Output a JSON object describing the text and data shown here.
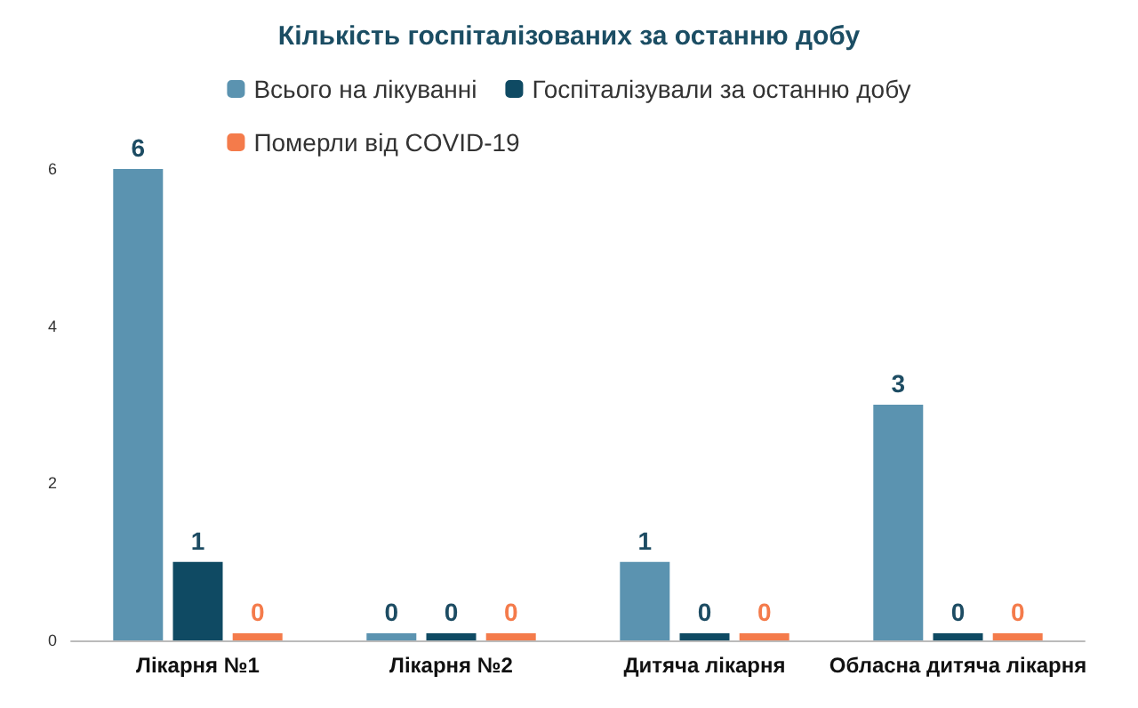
{
  "chart_data": {
    "type": "bar",
    "title": "Кількість госпіталізованих за останню добу",
    "categories": [
      "Лікарня №1",
      "Лікарня №2",
      "Дитяча лікарня",
      "Обласна дитяча лікарня"
    ],
    "series": [
      {
        "name": "Всього на лікуванні",
        "color": "#5b93b0",
        "values": [
          6,
          0,
          1,
          3
        ]
      },
      {
        "name": "Госпіталізували за останню добу",
        "color": "#0f4a63",
        "values": [
          1,
          0,
          0,
          0
        ]
      },
      {
        "name": "Померли від COVID-19",
        "color": "#f47b4b",
        "values": [
          0,
          0,
          0,
          0
        ]
      }
    ],
    "ylim": [
      0,
      6
    ],
    "yticks": [
      0,
      2,
      4,
      6
    ],
    "grid": false,
    "legend": "top",
    "data_labels": true
  }
}
